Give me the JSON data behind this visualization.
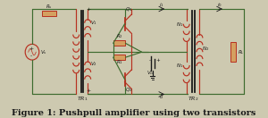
{
  "bg_color": "#cdc9b0",
  "gc": "#3d6b2e",
  "rc": "#b83020",
  "dk": "#1a1a1a",
  "lw": 0.85,
  "fig_title": "Figure 1: Pushpull amplifier using two transistors",
  "title_fontsize": 7.0
}
